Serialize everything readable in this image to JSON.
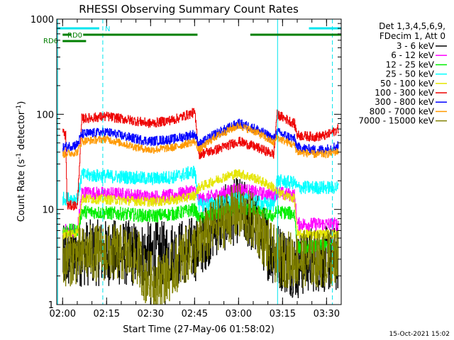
{
  "chart_data": {
    "type": "line",
    "title": "RHESSI Observing Summary Count Rates",
    "xlabel": "Start Time (27-May-06 01:58:02)",
    "ylabel_main": "Count Rate (s",
    "ylabel_sup1": "-1",
    "ylabel_mid": " detector",
    "ylabel_sup2": "-1",
    "ylabel_end": ")",
    "y_scale": "log",
    "ylim": [
      1,
      1000
    ],
    "xlim": [
      118,
      215
    ],
    "x_units": "minutes after 00:00 UT",
    "x_ticks": [
      {
        "value": 120,
        "label": "02:00"
      },
      {
        "value": 135,
        "label": "02:15"
      },
      {
        "value": 150,
        "label": "02:30"
      },
      {
        "value": 165,
        "label": "02:45"
      },
      {
        "value": 180,
        "label": "03:00"
      },
      {
        "value": 195,
        "label": "03:15"
      },
      {
        "value": 210,
        "label": "03:30"
      }
    ],
    "y_ticks": [
      {
        "value": 1,
        "label": "1"
      },
      {
        "value": 10,
        "label": "10"
      },
      {
        "value": 100,
        "label": "100"
      },
      {
        "value": 1000,
        "label": "1000"
      }
    ],
    "legend_header": [
      "Det 1,3,4,5,6,9,",
      "FDecim 1, Att 0"
    ],
    "legend_placement": "right",
    "timestamp": "15-Oct-2021 15:02",
    "flags": [
      {
        "label": "N",
        "color": "#00e5ee",
        "segments": [
          [
            118,
            132.5
          ],
          [
            204,
            215
          ]
        ]
      },
      {
        "label": "RD0",
        "color": "#007f00",
        "segments": [
          [
            120,
            123
          ],
          [
            127,
            166
          ],
          [
            184,
            215
          ]
        ]
      },
      {
        "label": "RD6",
        "color": "#007f00",
        "segments": [
          [
            120,
            128
          ]
        ]
      }
    ],
    "vlines": [
      {
        "x": 118.3,
        "style": "solid",
        "color": "#00e5ee"
      },
      {
        "x": 133.7,
        "style": "dashed",
        "color": "#00e5ee"
      },
      {
        "x": 193.3,
        "style": "solid",
        "color": "#00e5ee"
      },
      {
        "x": 212.0,
        "style": "dashed",
        "color": "#00e5ee"
      }
    ],
    "series": [
      {
        "name": "3 - 6 keV",
        "color": "#000000",
        "noise": 0.35,
        "points": [
          [
            120,
            3
          ],
          [
            127,
            3.5
          ],
          [
            140,
            3.5
          ],
          [
            150,
            3.3
          ],
          [
            160,
            3.5
          ],
          [
            166,
            4
          ],
          [
            172,
            7
          ],
          [
            180,
            10
          ],
          [
            186,
            7
          ],
          [
            190,
            4
          ],
          [
            195,
            3
          ],
          [
            200,
            2.5
          ],
          [
            204,
            3
          ],
          [
            210,
            3
          ],
          [
            214,
            3
          ]
        ]
      },
      {
        "name": "6 - 12 keV",
        "color": "#ff00ff",
        "noise": 0.07,
        "points": [
          [
            120,
            6
          ],
          [
            125,
            6
          ],
          [
            126.5,
            15
          ],
          [
            140,
            14.5
          ],
          [
            150,
            13.5
          ],
          [
            158,
            14
          ],
          [
            165,
            16
          ],
          [
            166.5,
            12.5
          ],
          [
            175,
            15
          ],
          [
            180,
            16.5
          ],
          [
            186,
            15
          ],
          [
            192,
            14
          ],
          [
            193,
            15
          ],
          [
            199,
            14
          ],
          [
            200,
            7
          ],
          [
            214,
            7
          ]
        ]
      },
      {
        "name": "12 - 25 keV",
        "color": "#00ee00",
        "noise": 0.07,
        "points": [
          [
            120,
            6
          ],
          [
            125,
            6
          ],
          [
            126.5,
            9.5
          ],
          [
            140,
            9
          ],
          [
            150,
            8.5
          ],
          [
            158,
            9
          ],
          [
            165,
            10
          ],
          [
            166.5,
            8
          ],
          [
            175,
            9.5
          ],
          [
            180,
            10.5
          ],
          [
            186,
            9.5
          ],
          [
            192,
            8.5
          ],
          [
            193,
            9.5
          ],
          [
            199,
            9
          ],
          [
            200,
            4
          ],
          [
            214,
            4.2
          ]
        ]
      },
      {
        "name": "25 - 50 keV",
        "color": "#00ffff",
        "noise": 0.07,
        "points": [
          [
            120,
            13
          ],
          [
            125,
            13
          ],
          [
            126.5,
            23
          ],
          [
            140,
            22
          ],
          [
            150,
            21
          ],
          [
            158,
            22
          ],
          [
            165,
            25
          ],
          [
            166.5,
            11
          ],
          [
            175,
            12
          ],
          [
            180,
            13
          ],
          [
            186,
            12
          ],
          [
            192,
            11
          ],
          [
            193,
            20
          ],
          [
            199,
            19
          ],
          [
            200,
            17
          ],
          [
            214,
            17
          ]
        ]
      },
      {
        "name": "50 - 100 keV",
        "color": "#e5e500",
        "noise": 0.05,
        "points": [
          [
            120,
            5.5
          ],
          [
            125,
            5.7
          ],
          [
            126.5,
            13
          ],
          [
            140,
            12.5
          ],
          [
            150,
            12
          ],
          [
            158,
            12.5
          ],
          [
            165,
            14
          ],
          [
            166.5,
            17
          ],
          [
            175,
            22
          ],
          [
            180,
            24
          ],
          [
            186,
            21
          ],
          [
            192,
            17
          ],
          [
            193,
            15
          ],
          [
            199,
            13
          ],
          [
            200,
            5.5
          ],
          [
            214,
            5.5
          ]
        ]
      },
      {
        "name": "100 - 300 keV",
        "color": "#ee0000",
        "noise": 0.05,
        "points": [
          [
            120,
            65
          ],
          [
            121,
            60
          ],
          [
            121.5,
            11
          ],
          [
            125,
            11
          ],
          [
            126.5,
            90
          ],
          [
            135,
            95
          ],
          [
            145,
            85
          ],
          [
            150,
            80
          ],
          [
            158,
            88
          ],
          [
            165,
            105
          ],
          [
            166.5,
            38
          ],
          [
            172,
            42
          ],
          [
            180,
            52
          ],
          [
            186,
            45
          ],
          [
            192,
            38
          ],
          [
            193,
            100
          ],
          [
            199,
            80
          ],
          [
            200,
            60
          ],
          [
            206,
            58
          ],
          [
            210,
            60
          ],
          [
            214,
            70
          ]
        ]
      },
      {
        "name": "300 - 800 keV",
        "color": "#0000ff",
        "noise": 0.05,
        "points": [
          [
            120,
            45
          ],
          [
            125,
            48
          ],
          [
            126.5,
            62
          ],
          [
            135,
            65
          ],
          [
            145,
            55
          ],
          [
            150,
            52
          ],
          [
            158,
            55
          ],
          [
            165,
            62
          ],
          [
            166.5,
            48
          ],
          [
            172,
            62
          ],
          [
            180,
            80
          ],
          [
            186,
            70
          ],
          [
            192,
            55
          ],
          [
            193,
            65
          ],
          [
            199,
            55
          ],
          [
            200,
            45
          ],
          [
            206,
            42
          ],
          [
            210,
            43
          ],
          [
            214,
            47
          ]
        ]
      },
      {
        "name": "800 - 7000 keV",
        "color": "#ff9900",
        "noise": 0.04,
        "points": [
          [
            120,
            38
          ],
          [
            125,
            40
          ],
          [
            126.5,
            52
          ],
          [
            135,
            55
          ],
          [
            145,
            45
          ],
          [
            150,
            42
          ],
          [
            158,
            45
          ],
          [
            165,
            52
          ],
          [
            166.5,
            42
          ],
          [
            172,
            58
          ],
          [
            180,
            76
          ],
          [
            186,
            65
          ],
          [
            192,
            50
          ],
          [
            193,
            57
          ],
          [
            199,
            47
          ],
          [
            200,
            40
          ],
          [
            206,
            38
          ],
          [
            210,
            38
          ],
          [
            214,
            41
          ]
        ]
      },
      {
        "name": "7000 - 15000 keV",
        "color": "#808000",
        "noise": 0.3,
        "points": [
          [
            120,
            3
          ],
          [
            130,
            3.5
          ],
          [
            140,
            3.5
          ],
          [
            146,
            3
          ],
          [
            148,
            2
          ],
          [
            152,
            1.7
          ],
          [
            157,
            2.2
          ],
          [
            160,
            3
          ],
          [
            166,
            4
          ],
          [
            172,
            7
          ],
          [
            180,
            9.5
          ],
          [
            186,
            7
          ],
          [
            190,
            4
          ],
          [
            194,
            3
          ],
          [
            200,
            3
          ],
          [
            204,
            3
          ],
          [
            210,
            3
          ],
          [
            214,
            3.3
          ]
        ]
      }
    ]
  }
}
